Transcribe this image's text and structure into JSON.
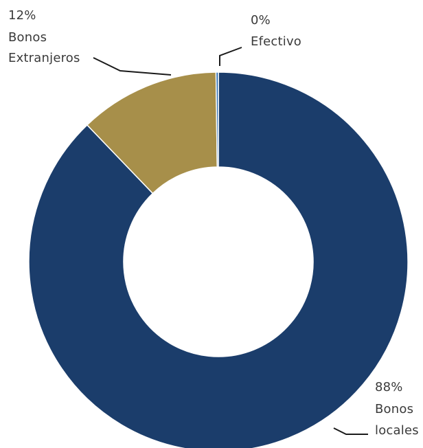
{
  "chart_data": {
    "type": "pie",
    "donut": true,
    "title": "",
    "legend": "none",
    "slices": [
      {
        "label_lines": [
          "Bonos",
          "locales"
        ],
        "value": 88,
        "value_label": "88%",
        "color": "#1b3d6b"
      },
      {
        "label_lines": [
          "Bonos",
          "Extranjeros"
        ],
        "value": 12,
        "value_label": "12%",
        "color": "#a78f4a"
      },
      {
        "label_lines": [
          "Efectivo"
        ],
        "value": 0.2,
        "value_label": "0%",
        "color": "#2f6fb3"
      }
    ]
  }
}
